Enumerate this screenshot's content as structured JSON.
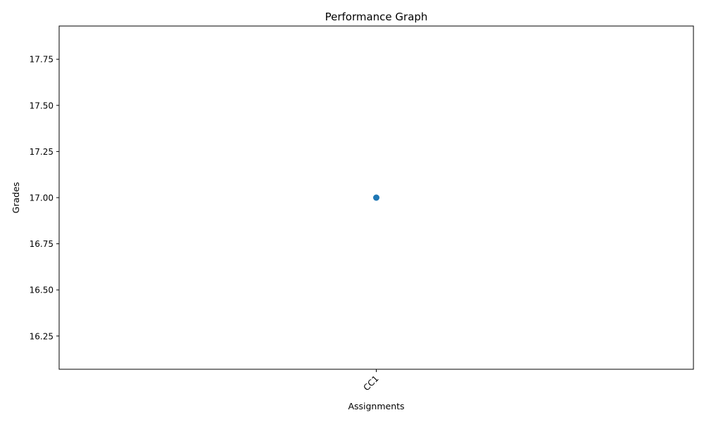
{
  "chart_data": {
    "type": "line",
    "title": "Performance Graph",
    "xlabel": "Assignments",
    "ylabel": "Grades",
    "categories": [
      "CC1"
    ],
    "series": [
      {
        "values": [
          17
        ],
        "color": "#1f77b4",
        "marker": "circle"
      }
    ],
    "ylim": [
      16.07,
      17.93
    ],
    "yticks": [
      16.25,
      16.5,
      16.75,
      17.0,
      17.25,
      17.5,
      17.75
    ],
    "ytick_labels": [
      "16.25",
      "16.50",
      "16.75",
      "17.00",
      "17.25",
      "17.50",
      "17.75"
    ],
    "xtick_rotation": "45",
    "grid": false,
    "legend": "none"
  }
}
